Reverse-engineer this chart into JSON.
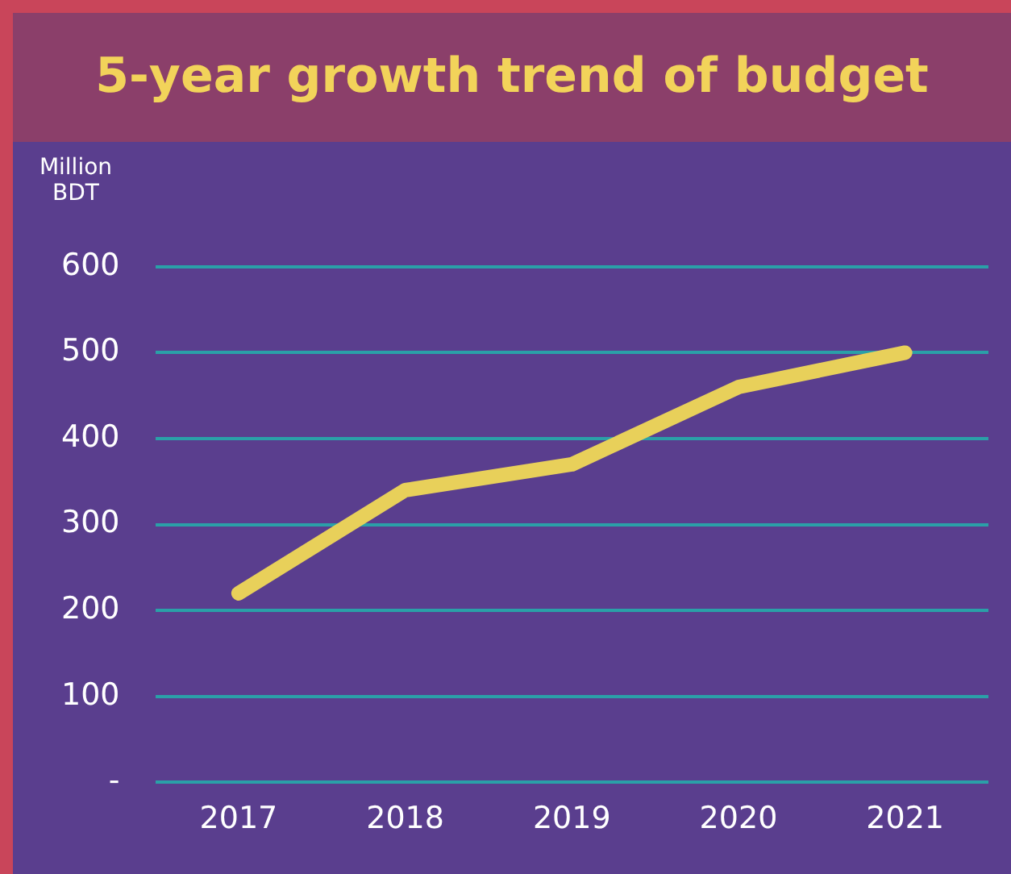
{
  "chart_data": {
    "type": "line",
    "title": "5-year growth trend of budget",
    "ylabel": "Million BDT",
    "categories": [
      "2017",
      "2018",
      "2019",
      "2020",
      "2021"
    ],
    "series": [
      {
        "color": "#e8d05a",
        "values": [
          220,
          340,
          370,
          460,
          500
        ]
      }
    ],
    "ylim": [
      0,
      600
    ],
    "yticks": [
      {
        "value": 0,
        "label": "-"
      },
      100,
      200,
      300,
      400,
      500,
      600
    ],
    "grid": "y",
    "legend": false,
    "marker": "none",
    "line_style": "solid"
  }
}
